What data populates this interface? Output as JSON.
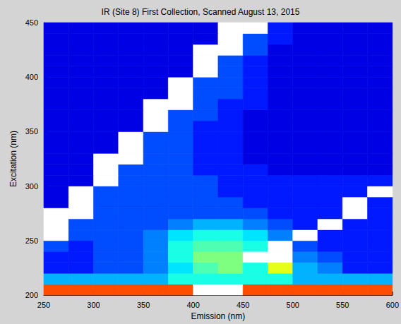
{
  "chart_data": {
    "type": "heatmap",
    "title": "IR (Site 8) First Collection, Scanned August 13, 2015",
    "x_label": "Emission (nm)",
    "y_label": "Excitation (nm)",
    "xlim": [
      250,
      600
    ],
    "ylim": [
      200,
      450
    ],
    "xticks": [
      250,
      300,
      350,
      400,
      450,
      500,
      550,
      600
    ],
    "yticks": [
      200,
      250,
      300,
      350,
      400,
      450
    ],
    "color_range": [
      0,
      10
    ],
    "x": [
      262.5,
      287.5,
      312.5,
      337.5,
      362.5,
      387.5,
      412.5,
      437.5,
      462.5,
      487.5,
      512.5,
      537.5,
      562.5,
      587.5
    ],
    "y": [
      205,
      215,
      225,
      235,
      245,
      255,
      265,
      275,
      285,
      295,
      305,
      315,
      325,
      335,
      345,
      355,
      365,
      375,
      385,
      395,
      405,
      415,
      425,
      435,
      445
    ],
    "cells": [
      [
        8,
        8,
        8,
        8,
        8,
        8,
        null,
        null,
        8,
        8,
        8,
        8,
        8,
        8
      ],
      [
        3,
        3,
        3,
        3,
        3,
        4,
        4,
        4,
        4,
        4,
        3,
        3,
        3,
        3
      ],
      [
        1.5,
        1.5,
        2,
        2,
        2.5,
        3.5,
        4.5,
        5,
        4,
        6,
        3,
        2.5,
        1.5,
        1.5
      ],
      [
        1.5,
        1.5,
        2,
        2,
        2.5,
        4,
        5,
        5,
        null,
        null,
        2.5,
        2,
        1.5,
        1.5
      ],
      [
        2,
        1.5,
        2,
        2,
        2.5,
        4,
        4.5,
        4.5,
        4,
        null,
        2,
        1.5,
        1.5,
        1.5
      ],
      [
        null,
        2,
        2,
        2,
        2.5,
        3.5,
        4,
        4,
        3.5,
        2.5,
        null,
        1.5,
        1.5,
        1.5
      ],
      [
        null,
        2,
        2,
        2,
        2,
        2.5,
        3,
        3,
        2.5,
        2,
        1.5,
        null,
        1.5,
        1.5
      ],
      [
        null,
        null,
        2,
        2,
        2,
        2,
        2,
        2,
        2,
        1.5,
        1.5,
        1.5,
        null,
        1.5
      ],
      [
        1,
        null,
        2,
        2,
        2,
        2,
        2,
        2,
        1.5,
        1.5,
        1.5,
        1.5,
        null,
        1.5
      ],
      [
        1,
        null,
        2,
        2,
        2,
        2,
        2,
        1.5,
        1.5,
        1.5,
        1.5,
        1.5,
        1.5,
        null
      ],
      [
        1,
        1,
        null,
        2,
        2,
        2,
        2,
        1.5,
        1.5,
        1.5,
        1.5,
        1.5,
        1.5,
        1.5
      ],
      [
        1,
        1,
        null,
        2,
        2,
        2,
        1.5,
        1.5,
        1.5,
        1,
        1,
        1,
        1,
        1
      ],
      [
        1,
        1,
        null,
        null,
        2,
        2,
        1.5,
        1.5,
        1,
        1,
        1,
        1,
        1,
        1
      ],
      [
        1,
        1,
        1,
        null,
        2,
        2,
        1.5,
        1.5,
        1,
        1,
        1,
        1,
        1,
        1
      ],
      [
        1,
        1,
        1,
        null,
        2,
        2,
        1.5,
        1.5,
        1,
        1,
        1,
        1,
        1,
        1
      ],
      [
        1,
        1,
        1,
        1,
        null,
        2,
        1.5,
        1.5,
        1,
        1,
        1,
        1,
        1,
        1
      ],
      [
        1,
        1,
        1,
        1,
        null,
        2,
        2,
        1.5,
        1,
        1,
        1,
        1,
        1,
        1
      ],
      [
        1,
        1,
        1,
        1,
        null,
        null,
        2,
        1.5,
        1.5,
        1,
        1,
        1,
        1,
        1
      ],
      [
        1,
        1,
        1,
        1,
        1,
        null,
        2,
        2,
        1.5,
        1,
        1,
        1,
        1,
        1
      ],
      [
        1,
        1,
        1,
        1,
        1,
        null,
        2,
        2,
        1.5,
        1,
        1,
        1,
        1,
        1
      ],
      [
        1,
        1,
        1,
        1,
        1,
        1,
        null,
        2,
        1.5,
        1,
        1,
        1,
        1,
        1
      ],
      [
        1,
        1,
        1,
        1,
        1,
        1,
        null,
        2,
        1.5,
        1,
        1,
        1,
        1,
        1
      ],
      [
        1,
        1,
        1,
        1,
        1,
        1,
        null,
        null,
        2,
        1,
        1,
        1,
        1,
        1
      ],
      [
        1,
        1,
        1,
        1,
        1,
        1,
        1,
        null,
        2,
        1.5,
        1,
        1,
        1,
        1
      ],
      [
        1,
        1,
        1,
        1,
        1,
        1,
        1,
        null,
        null,
        1.5,
        1,
        1,
        1,
        1
      ]
    ]
  }
}
